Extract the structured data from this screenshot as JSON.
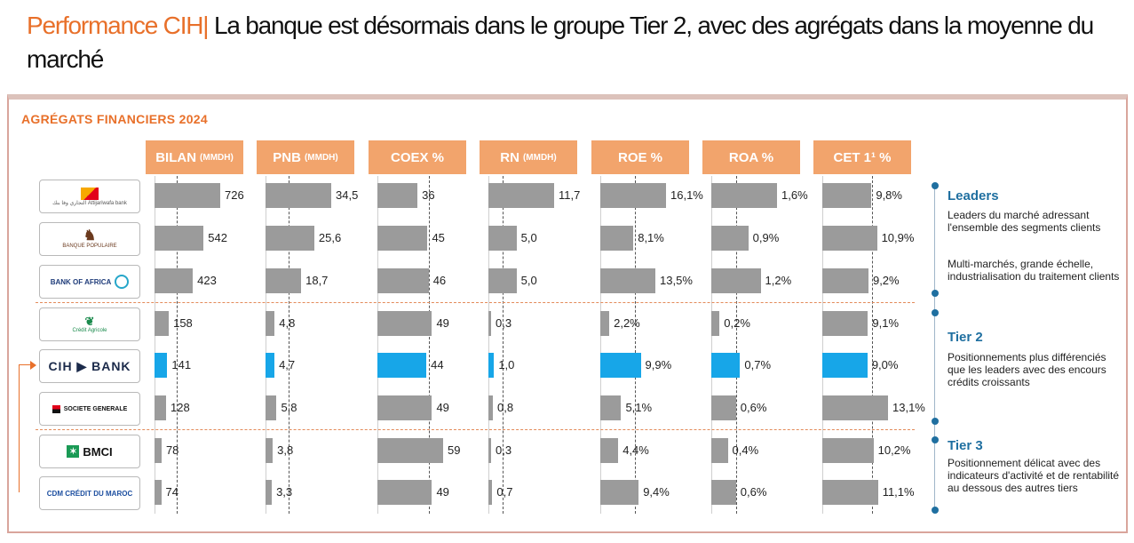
{
  "header": {
    "brand": "Performance CIH|",
    "text": " La banque est désormais dans le groupe Tier 2, avec des agrégats dans la moyenne du marché"
  },
  "section_title": "AGRÉGATS FINANCIERS 2024",
  "colors": {
    "bar": "#9b9b9b",
    "highlight": "#17a6e8",
    "header": "#f2a46c",
    "accent": "#e8702a"
  },
  "banks": [
    {
      "name": "Attijariwafa bank",
      "logo_text": "التجاري وفا بنك Attijariwafa bank"
    },
    {
      "name": "Banque Populaire",
      "logo_text": "BANQUE POPULAIRE"
    },
    {
      "name": "Bank of Africa",
      "logo_text": "BANK OF AFRICA"
    },
    {
      "name": "Crédit Agricole",
      "logo_text": "Crédit Agricole"
    },
    {
      "name": "CIH Bank",
      "logo_text": "CIH ▶ BANK"
    },
    {
      "name": "Société Générale",
      "logo_text": "SOCIETE GENERALE"
    },
    {
      "name": "BMCI",
      "logo_text": "BMCI"
    },
    {
      "name": "CDM",
      "logo_text": "CDM CRÉDIT DU MAROC"
    }
  ],
  "chart_data": {
    "type": "bar",
    "highlight_index": 4,
    "columns": [
      {
        "label": "BILAN",
        "unit": "(MMDH)",
        "max": 726,
        "ref": 250,
        "values": [
          726,
          542,
          423,
          158,
          141,
          128,
          78,
          74
        ],
        "labels": [
          "726",
          "542",
          "423",
          "158",
          "141",
          "128",
          "78",
          "74"
        ]
      },
      {
        "label": "PNB",
        "unit": "(MMDH)",
        "max": 34.5,
        "ref": 12,
        "values": [
          34.5,
          25.6,
          18.7,
          4.8,
          4.7,
          5.8,
          3.8,
          3.3
        ],
        "labels": [
          "34,5",
          "25,6",
          "18,7",
          "4,8",
          "4,7",
          "5,8",
          "3,8",
          "3,3"
        ]
      },
      {
        "label": "COEX %",
        "unit": "",
        "max": 59,
        "ref": 46,
        "values": [
          36,
          45,
          46,
          49,
          44,
          49,
          59,
          49
        ],
        "labels": [
          "36",
          "45",
          "46",
          "49",
          "44",
          "49",
          "59",
          "49"
        ]
      },
      {
        "label": "RN",
        "unit": "(MMDH)",
        "max": 11.7,
        "ref": 2.5,
        "values": [
          11.7,
          5.0,
          5.0,
          0.3,
          1.0,
          0.8,
          0.3,
          0.7
        ],
        "labels": [
          "11,7",
          "5,0",
          "5,0",
          "0,3",
          "1,0",
          "0,8",
          "0,3",
          "0,7"
        ]
      },
      {
        "label": "ROE %",
        "unit": "",
        "max": 16.1,
        "ref": 8.4,
        "values": [
          16.1,
          8.1,
          13.5,
          2.2,
          9.9,
          5.1,
          4.4,
          9.4
        ],
        "labels": [
          "16,1%",
          "8,1%",
          "13,5%",
          "2,2%",
          "9,9%",
          "5,1%",
          "4,4%",
          "9,4%"
        ]
      },
      {
        "label": "ROA %",
        "unit": "",
        "max": 1.6,
        "ref": 0.6,
        "values": [
          1.6,
          0.9,
          1.2,
          0.2,
          0.7,
          0.6,
          0.4,
          0.6
        ],
        "labels": [
          "1,6%",
          "0,9%",
          "1,2%",
          "0,2%",
          "0,7%",
          "0,6%",
          "0,4%",
          "0,6%"
        ]
      },
      {
        "label": "CET 1¹ %",
        "unit": "",
        "max": 13.1,
        "ref": 10.0,
        "values": [
          9.8,
          10.9,
          9.2,
          9.1,
          9.0,
          13.1,
          10.2,
          11.1
        ],
        "labels": [
          "9,8%",
          "10,9%",
          "9,2%",
          "9,1%",
          "9,0%",
          "13,1%",
          "10,2%",
          "11,1%"
        ]
      }
    ]
  },
  "tiers": [
    {
      "title": "Leaders",
      "texts": [
        "Leaders du marché adressant l'ensemble des segments clients",
        "Multi-marchés, grande échelle, industrialisation du traitement clients"
      ]
    },
    {
      "title": "Tier 2",
      "texts": [
        "Positionnements plus différenciés que les leaders avec des encours crédits croissants"
      ]
    },
    {
      "title": "Tier 3",
      "texts": [
        "Positionnement délicat avec des indicateurs d'activité et de rentabilité au dessous des autres tiers"
      ]
    }
  ]
}
